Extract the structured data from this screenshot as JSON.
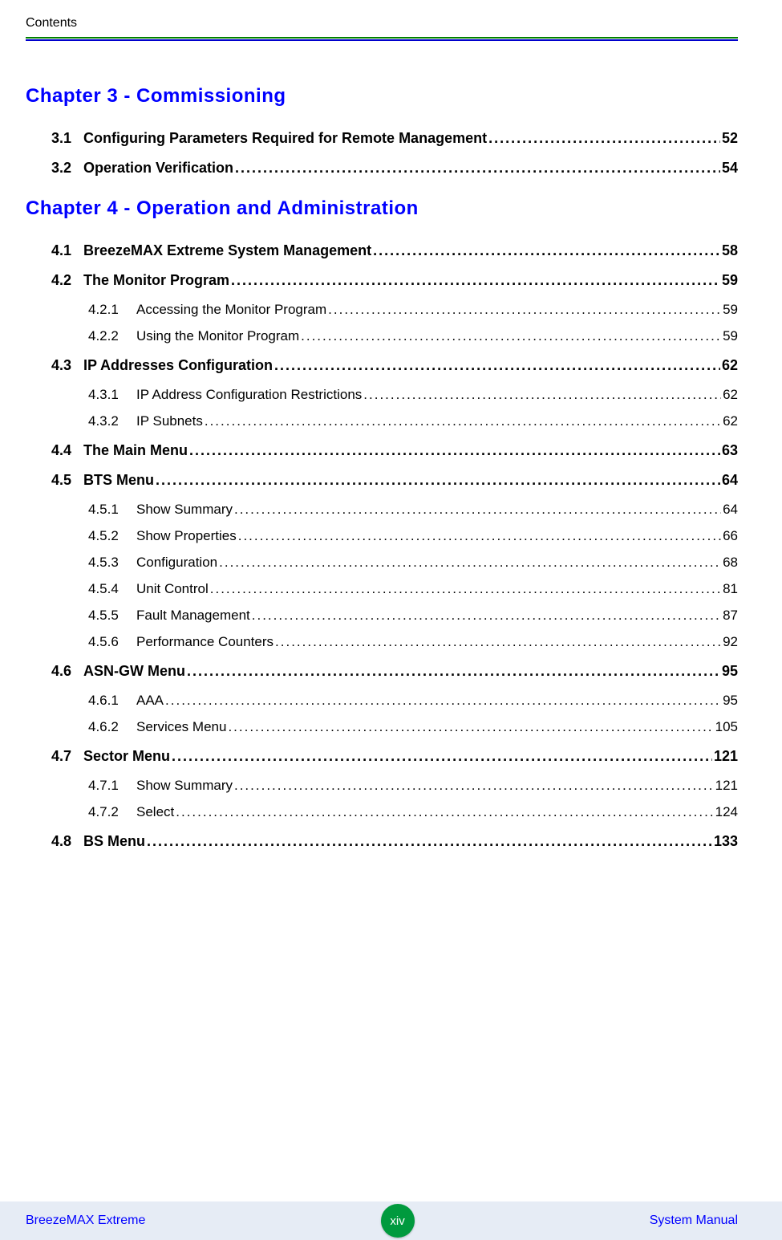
{
  "header_label": "Contents",
  "footer": {
    "left": "BreezeMAX Extreme",
    "page_num": "xiv",
    "right": "System Manual"
  },
  "chapters": [
    {
      "title": "Chapter 3 - Commissioning",
      "entries": [
        {
          "level": 1,
          "num": "3.1",
          "title": "Configuring Parameters Required for Remote Management",
          "page": "52"
        },
        {
          "level": 1,
          "num": "3.2",
          "title": "Operation Verification",
          "page": "54"
        }
      ]
    },
    {
      "title": "Chapter 4 - Operation and Administration",
      "entries": [
        {
          "level": 1,
          "num": "4.1",
          "title": "BreezeMAX Extreme System Management",
          "page": "58"
        },
        {
          "level": 1,
          "num": "4.2",
          "title": "The Monitor Program",
          "page": "59"
        },
        {
          "level": 2,
          "num": "4.2.1",
          "title": "Accessing the Monitor Program",
          "page": "59"
        },
        {
          "level": 2,
          "num": "4.2.2",
          "title": "Using the Monitor Program",
          "page": "59"
        },
        {
          "level": 1,
          "num": "4.3",
          "title": "IP Addresses Configuration",
          "page": "62"
        },
        {
          "level": 2,
          "num": "4.3.1",
          "title": "IP Address Configuration Restrictions",
          "page": "62"
        },
        {
          "level": 2,
          "num": "4.3.2",
          "title": "IP Subnets",
          "page": "62"
        },
        {
          "level": 1,
          "num": "4.4",
          "title": "The Main Menu",
          "page": "63"
        },
        {
          "level": 1,
          "num": "4.5",
          "title": "BTS Menu",
          "page": "64"
        },
        {
          "level": 2,
          "num": "4.5.1",
          "title": "Show Summary",
          "page": "64"
        },
        {
          "level": 2,
          "num": "4.5.2",
          "title": "Show Properties",
          "page": "66"
        },
        {
          "level": 2,
          "num": "4.5.3",
          "title": "Configuration",
          "page": "68"
        },
        {
          "level": 2,
          "num": "4.5.4",
          "title": "Unit Control",
          "page": "81"
        },
        {
          "level": 2,
          "num": "4.5.5",
          "title": "Fault Management",
          "page": "87"
        },
        {
          "level": 2,
          "num": "4.5.6",
          "title": "Performance Counters",
          "page": "92"
        },
        {
          "level": 1,
          "num": "4.6",
          "title": "ASN-GW Menu",
          "page": "95"
        },
        {
          "level": 2,
          "num": "4.6.1",
          "title": "AAA",
          "page": "95"
        },
        {
          "level": 2,
          "num": "4.6.2",
          "title": "Services Menu",
          "page": "105"
        },
        {
          "level": 1,
          "num": "4.7",
          "title": "Sector Menu",
          "page": "121"
        },
        {
          "level": 2,
          "num": "4.7.1",
          "title": "Show Summary",
          "page": "121"
        },
        {
          "level": 2,
          "num": "4.7.2",
          "title": "Select",
          "page": "124"
        },
        {
          "level": 1,
          "num": "4.8",
          "title": "BS Menu",
          "page": "133"
        }
      ]
    }
  ]
}
